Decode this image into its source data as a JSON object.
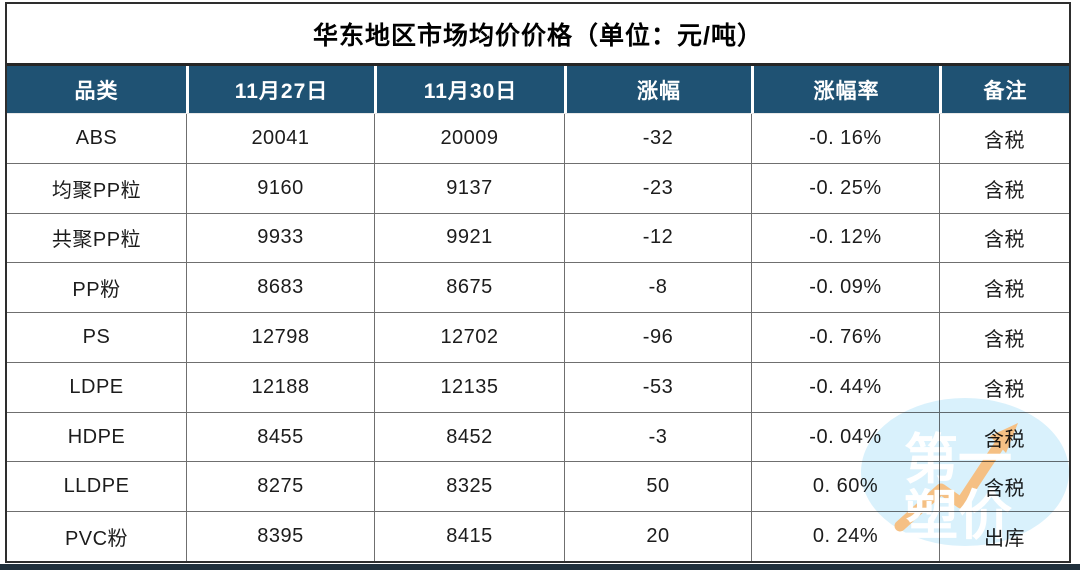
{
  "title": "华东地区市场均价价格（单位：元/吨）",
  "chart_data": {
    "type": "table",
    "title": "华东地区市场均价价格（单位：元/吨）",
    "columns": [
      "品类",
      "11月27日",
      "11月30日",
      "涨幅",
      "涨幅率",
      "备注"
    ],
    "rows": [
      [
        "ABS",
        "20041",
        "20009",
        "-32",
        "-0. 16%",
        "含税"
      ],
      [
        "均聚PP粒",
        "9160",
        "9137",
        "-23",
        "-0. 25%",
        "含税"
      ],
      [
        "共聚PP粒",
        "9933",
        "9921",
        "-12",
        "-0. 12%",
        "含税"
      ],
      [
        "PP粉",
        "8683",
        "8675",
        "-8",
        "-0. 09%",
        "含税"
      ],
      [
        "PS",
        "12798",
        "12702",
        "-96",
        "-0. 76%",
        "含税"
      ],
      [
        "LDPE",
        "12188",
        "12135",
        "-53",
        "-0. 44%",
        "含税"
      ],
      [
        "HDPE",
        "8455",
        "8452",
        "-3",
        "-0. 04%",
        "含税"
      ],
      [
        "LLDPE",
        "8275",
        "8325",
        "50",
        "0. 60%",
        "含税"
      ],
      [
        "PVC粉",
        "8395",
        "8415",
        "20",
        "0. 24%",
        "出库"
      ]
    ],
    "row_trend": [
      "down",
      "down",
      "down",
      "down",
      "down",
      "down",
      "down",
      "up",
      "up"
    ]
  },
  "watermark": {
    "line1": "第一",
    "line2": "塑价"
  },
  "colors": {
    "header_bg": "#1F5273",
    "down_green": "#21BE5F",
    "up_red": "#FB2424",
    "watermark_blue": "#D9F1FC",
    "watermark_arrow": "#F5C084",
    "bottom_bar": "#20303c"
  }
}
